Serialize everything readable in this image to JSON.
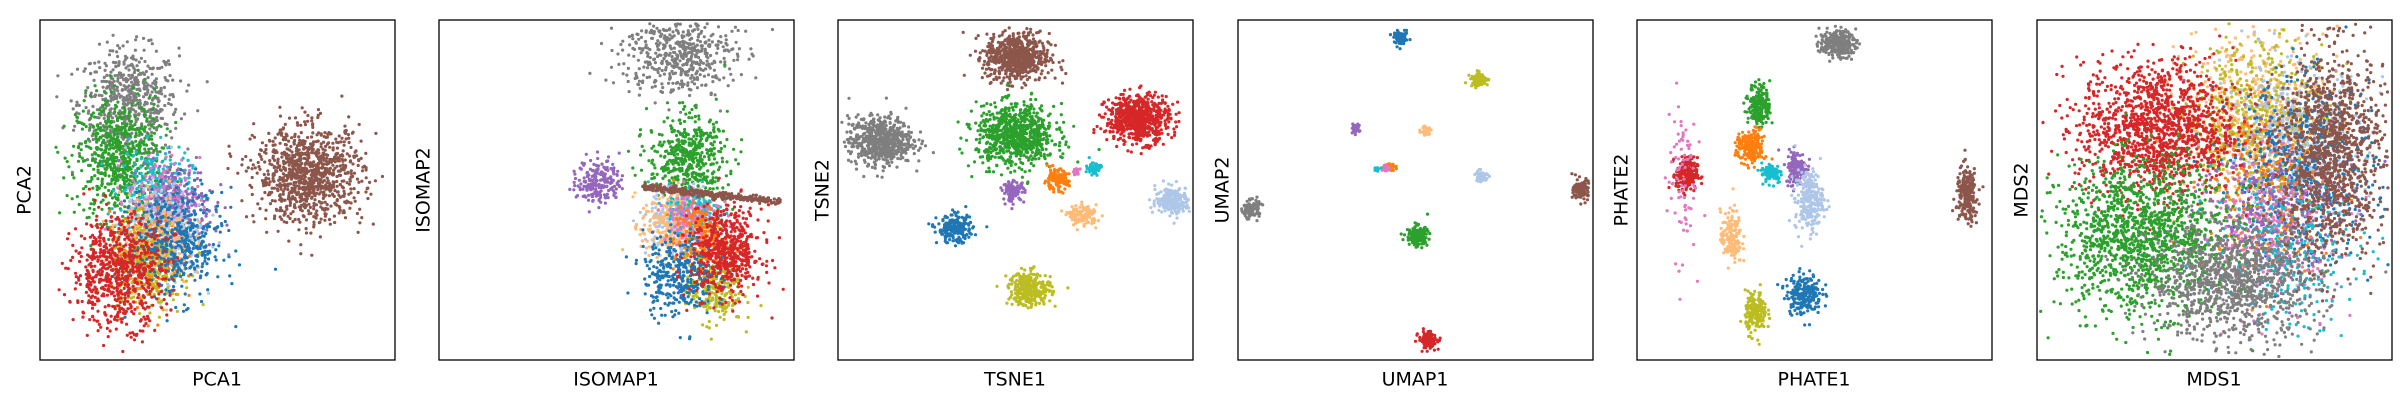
{
  "figure": {
    "title": ""
  },
  "palette": {
    "blue": "#1f77b4",
    "light_blue": "#aec7e8",
    "orange": "#ff7f0e",
    "peach": "#ffbb78",
    "green": "#2ca02c",
    "red": "#d62728",
    "purple": "#9467bd",
    "brown": "#8c564b",
    "pink": "#e377c2",
    "gray": "#7f7f7f",
    "olive": "#bcbd22",
    "cyan": "#17becf"
  },
  "chart_data": [
    {
      "type": "scatter",
      "xlabel": "PCA1",
      "ylabel": "PCA2",
      "xlim": [
        -10,
        10
      ],
      "ylim": [
        -10,
        10
      ],
      "grid": false,
      "legend": "none",
      "ticks": "hidden",
      "clusters": [
        {
          "color": "#7f7f7f",
          "center": [
            -5.0,
            5.1
          ],
          "spread": [
            1.4,
            1.6
          ],
          "n": 600
        },
        {
          "color": "#2ca02c",
          "center": [
            -5.5,
            1.8
          ],
          "spread": [
            1.2,
            1.8
          ],
          "n": 700
        },
        {
          "color": "#17becf",
          "center": [
            -3.5,
            0.0
          ],
          "spread": [
            1.0,
            1.2
          ],
          "n": 250
        },
        {
          "color": "#e377c2",
          "center": [
            -3.0,
            -0.5
          ],
          "spread": [
            1.0,
            1.2
          ],
          "n": 200
        },
        {
          "color": "#9467bd",
          "center": [
            -2.2,
            -1.0
          ],
          "spread": [
            1.0,
            1.3
          ],
          "n": 250
        },
        {
          "color": "#aec7e8",
          "center": [
            -3.0,
            -2.5
          ],
          "spread": [
            1.1,
            1.4
          ],
          "n": 300
        },
        {
          "color": "#ff7f0e",
          "center": [
            -4.0,
            -4.0
          ],
          "spread": [
            1.0,
            1.3
          ],
          "n": 250
        },
        {
          "color": "#ffbb78",
          "center": [
            -3.5,
            -3.0
          ],
          "spread": [
            1.0,
            1.3
          ],
          "n": 250
        },
        {
          "color": "#bcbd22",
          "center": [
            -4.0,
            -4.5
          ],
          "spread": [
            1.0,
            1.3
          ],
          "n": 250
        },
        {
          "color": "#1f77b4",
          "center": [
            -2.3,
            -3.2
          ],
          "spread": [
            1.3,
            1.6
          ],
          "n": 450
        },
        {
          "color": "#d62728",
          "center": [
            -5.6,
            -4.8
          ],
          "spread": [
            1.3,
            1.6
          ],
          "n": 700
        },
        {
          "color": "#8c564b",
          "center": [
            5.2,
            0.9
          ],
          "spread": [
            1.5,
            1.4
          ],
          "n": 1000
        }
      ]
    },
    {
      "type": "scatter",
      "xlabel": "ISOMAP1",
      "ylabel": "ISOMAP2",
      "xlim": [
        -10,
        10
      ],
      "ylim": [
        -10,
        10
      ],
      "grid": false,
      "legend": "none",
      "ticks": "hidden",
      "clusters": [
        {
          "color": "#7f7f7f",
          "center": [
            3.5,
            8.0
          ],
          "spread": [
            1.6,
            1.2
          ],
          "n": 500
        },
        {
          "color": "#2ca02c",
          "center": [
            4.0,
            1.8
          ],
          "spread": [
            1.1,
            1.3
          ],
          "n": 500
        },
        {
          "color": "#9467bd",
          "center": [
            -1.0,
            0.5
          ],
          "spread": [
            0.6,
            0.7
          ],
          "n": 200
        },
        {
          "color": "#aec7e8",
          "center": [
            3.6,
            -2.0
          ],
          "spread": [
            0.9,
            1.0
          ],
          "n": 250
        },
        {
          "color": "#ffbb78",
          "center": [
            3.0,
            -2.0
          ],
          "spread": [
            0.8,
            1.0
          ],
          "n": 250
        },
        {
          "color": "#17becf",
          "center": [
            4.5,
            -1.2
          ],
          "spread": [
            0.8,
            0.8
          ],
          "n": 150
        },
        {
          "color": "#e377c2",
          "center": [
            4.2,
            -1.5
          ],
          "spread": [
            0.8,
            0.8
          ],
          "n": 150
        },
        {
          "color": "#ff7f0e",
          "center": [
            4.8,
            -3.0
          ],
          "spread": [
            0.8,
            1.0
          ],
          "n": 200
        },
        {
          "color": "#bcbd22",
          "center": [
            5.5,
            -5.8
          ],
          "spread": [
            0.8,
            1.0
          ],
          "n": 250
        },
        {
          "color": "#1f77b4",
          "center": [
            3.5,
            -5.0
          ],
          "spread": [
            1.0,
            1.2
          ],
          "n": 350
        },
        {
          "color": "#d62728",
          "center": [
            6.2,
            -3.6
          ],
          "spread": [
            1.0,
            1.3
          ],
          "n": 600
        },
        {
          "color": "#8c564b",
          "line_from": [
            1.5,
            0.2
          ],
          "line_to": [
            9.2,
            -0.7
          ],
          "spread": [
            0.05,
            0.1
          ],
          "n": 350
        }
      ]
    },
    {
      "type": "scatter",
      "xlabel": "TSNE1",
      "ylabel": "TSNE2",
      "xlim": [
        -10,
        10
      ],
      "ylim": [
        -10,
        10
      ],
      "grid": false,
      "legend": "none",
      "ticks": "hidden",
      "clusters": [
        {
          "color": "#8c564b",
          "center": [
            0.1,
            7.8
          ],
          "spread": [
            0.9,
            0.7
          ],
          "n": 700
        },
        {
          "color": "#7f7f7f",
          "center": [
            -7.6,
            2.9
          ],
          "spread": [
            0.9,
            0.7
          ],
          "n": 650
        },
        {
          "color": "#2ca02c",
          "center": [
            0.0,
            3.2
          ],
          "spread": [
            1.1,
            0.9
          ],
          "n": 800
        },
        {
          "color": "#d62728",
          "center": [
            6.9,
            4.2
          ],
          "spread": [
            0.9,
            0.7
          ],
          "n": 650
        },
        {
          "color": "#17becf",
          "center": [
            4.4,
            1.3
          ],
          "spread": [
            0.2,
            0.2
          ],
          "n": 60
        },
        {
          "color": "#e377c2",
          "center": [
            3.4,
            1.1
          ],
          "spread": [
            0.1,
            0.1
          ],
          "n": 30
        },
        {
          "color": "#ff7f0e",
          "center": [
            2.3,
            0.6
          ],
          "spread": [
            0.35,
            0.3
          ],
          "n": 120
        },
        {
          "color": "#9467bd",
          "center": [
            -0.1,
            -0.1
          ],
          "spread": [
            0.3,
            0.3
          ],
          "n": 100
        },
        {
          "color": "#aec7e8",
          "center": [
            8.9,
            -0.6
          ],
          "spread": [
            0.5,
            0.4
          ],
          "n": 220
        },
        {
          "color": "#ffbb78",
          "center": [
            3.8,
            -1.5
          ],
          "spread": [
            0.4,
            0.3
          ],
          "n": 120
        },
        {
          "color": "#1f77b4",
          "center": [
            -3.4,
            -2.3
          ],
          "spread": [
            0.5,
            0.4
          ],
          "n": 220
        },
        {
          "color": "#bcbd22",
          "center": [
            0.8,
            -5.8
          ],
          "spread": [
            0.6,
            0.5
          ],
          "n": 300
        }
      ]
    },
    {
      "type": "scatter",
      "xlabel": "UMAP1",
      "ylabel": "UMAP2",
      "xlim": [
        -10,
        10
      ],
      "ylim": [
        -10,
        10
      ],
      "grid": false,
      "legend": "none",
      "ticks": "hidden",
      "clusters": [
        {
          "color": "#1f77b4",
          "center": [
            -0.8,
            8.9
          ],
          "spread": [
            0.2,
            0.2
          ],
          "n": 80
        },
        {
          "color": "#bcbd22",
          "center": [
            3.6,
            6.5
          ],
          "spread": [
            0.25,
            0.2
          ],
          "n": 80
        },
        {
          "color": "#9467bd",
          "center": [
            -3.4,
            3.6
          ],
          "spread": [
            0.12,
            0.12
          ],
          "n": 40
        },
        {
          "color": "#ffbb78",
          "center": [
            0.6,
            3.5
          ],
          "spread": [
            0.15,
            0.15
          ],
          "n": 40
        },
        {
          "color": "#ff7f0e",
          "center": [
            -1.4,
            1.4
          ],
          "spread": [
            0.12,
            0.12
          ],
          "n": 40
        },
        {
          "color": "#e377c2",
          "center": [
            -1.7,
            1.3
          ],
          "spread": [
            0.1,
            0.1
          ],
          "n": 30
        },
        {
          "color": "#17becf",
          "center": [
            -2.2,
            1.2
          ],
          "spread": [
            0.08,
            0.08
          ],
          "n": 20
        },
        {
          "color": "#aec7e8",
          "center": [
            3.7,
            0.8
          ],
          "spread": [
            0.18,
            0.18
          ],
          "n": 60
        },
        {
          "color": "#8c564b",
          "center": [
            9.4,
            0.0
          ],
          "spread": [
            0.25,
            0.3
          ],
          "n": 120
        },
        {
          "color": "#7f7f7f",
          "center": [
            -9.3,
            -1.1
          ],
          "spread": [
            0.25,
            0.25
          ],
          "n": 120
        },
        {
          "color": "#2ca02c",
          "center": [
            0.1,
            -2.7
          ],
          "spread": [
            0.3,
            0.3
          ],
          "n": 150
        },
        {
          "color": "#d62728",
          "center": [
            0.7,
            -8.8
          ],
          "spread": [
            0.25,
            0.25
          ],
          "n": 120
        }
      ]
    },
    {
      "type": "scatter",
      "xlabel": "PHATE1",
      "ylabel": "PHATE2",
      "xlim": [
        -10,
        10
      ],
      "ylim": [
        -10,
        10
      ],
      "grid": false,
      "legend": "none",
      "ticks": "hidden",
      "clusters": [
        {
          "color": "#7f7f7f",
          "center": [
            1.3,
            8.6
          ],
          "spread": [
            0.5,
            0.4
          ],
          "n": 250
        },
        {
          "color": "#2ca02c",
          "center": [
            -3.1,
            5.0
          ],
          "spread": [
            0.3,
            0.6
          ],
          "n": 200
        },
        {
          "color": "#ff7f0e",
          "center": [
            -3.6,
            2.5
          ],
          "spread": [
            0.4,
            0.5
          ],
          "n": 200
        },
        {
          "color": "#d62728",
          "center": [
            -7.2,
            0.9
          ],
          "spread": [
            0.3,
            0.5
          ],
          "n": 200
        },
        {
          "color": "#17becf",
          "center": [
            -2.4,
            1.0
          ],
          "spread": [
            0.3,
            0.3
          ],
          "n": 100
        },
        {
          "color": "#9467bd",
          "center": [
            -1.0,
            1.3
          ],
          "spread": [
            0.3,
            0.5
          ],
          "n": 150
        },
        {
          "color": "#aec7e8",
          "center": [
            -0.3,
            -0.6
          ],
          "spread": [
            0.4,
            0.9
          ],
          "n": 250
        },
        {
          "color": "#e377c2",
          "center": [
            -7.5,
            1.0
          ],
          "spread": [
            0.4,
            2.5
          ],
          "n": 80
        },
        {
          "color": "#ffbb78",
          "center": [
            -4.7,
            -2.8
          ],
          "spread": [
            0.3,
            0.8
          ],
          "n": 150
        },
        {
          "color": "#1f77b4",
          "center": [
            -0.6,
            -6.1
          ],
          "spread": [
            0.5,
            0.6
          ],
          "n": 220
        },
        {
          "color": "#bcbd22",
          "center": [
            -3.3,
            -7.2
          ],
          "spread": [
            0.3,
            0.6
          ],
          "n": 180
        },
        {
          "color": "#8c564b",
          "center": [
            8.6,
            -0.3
          ],
          "spread": [
            0.3,
            0.8
          ],
          "n": 220
        }
      ]
    },
    {
      "type": "scatter",
      "xlabel": "MDS1",
      "ylabel": "MDS2",
      "xlim": [
        -10,
        10
      ],
      "ylim": [
        -10,
        10
      ],
      "grid": false,
      "legend": "none",
      "ticks": "hidden",
      "clusters": [
        {
          "color": "#ffbb78",
          "center": [
            2.2,
            4.6
          ],
          "spread": [
            2.0,
            2.4
          ],
          "n": 500
        },
        {
          "color": "#bcbd22",
          "center": [
            2.5,
            4.1
          ],
          "spread": [
            2.0,
            2.4
          ],
          "n": 500
        },
        {
          "color": "#aec7e8",
          "center": [
            4.5,
            2.5
          ],
          "spread": [
            2.0,
            2.4
          ],
          "n": 500
        },
        {
          "color": "#1f77b4",
          "center": [
            5.0,
            1.0
          ],
          "spread": [
            2.0,
            2.6
          ],
          "n": 600
        },
        {
          "color": "#ff7f0e",
          "center": [
            2.8,
            0.0
          ],
          "spread": [
            2.0,
            2.4
          ],
          "n": 300
        },
        {
          "color": "#9467bd",
          "center": [
            3.0,
            -1.2
          ],
          "spread": [
            2.0,
            2.4
          ],
          "n": 300
        },
        {
          "color": "#e377c2",
          "center": [
            3.0,
            -2.4
          ],
          "spread": [
            2.0,
            2.2
          ],
          "n": 250
        },
        {
          "color": "#17becf",
          "center": [
            4.0,
            -3.6
          ],
          "spread": [
            2.0,
            2.2
          ],
          "n": 250
        },
        {
          "color": "#d62728",
          "center": [
            -3.2,
            3.6
          ],
          "spread": [
            2.2,
            2.0
          ],
          "n": 1400
        },
        {
          "color": "#2ca02c",
          "center": [
            -4.0,
            -2.8
          ],
          "spread": [
            2.4,
            2.2
          ],
          "n": 1400
        },
        {
          "color": "#7f7f7f",
          "center": [
            1.1,
            -5.4
          ],
          "spread": [
            2.4,
            1.7
          ],
          "n": 1100
        },
        {
          "color": "#8c564b",
          "center": [
            6.6,
            2.3
          ],
          "spread": [
            1.5,
            3.0
          ],
          "n": 1200
        }
      ]
    }
  ]
}
